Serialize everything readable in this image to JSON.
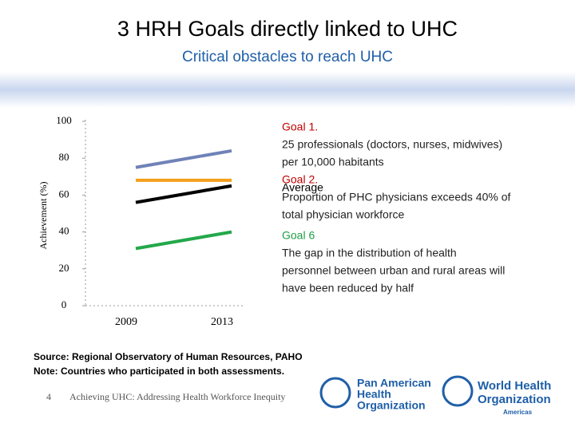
{
  "slide": {
    "title": "3 HRH Goals directly linked to UHC",
    "subtitle": "Critical obstacles to reach UHC",
    "source": "Source: Regional Observatory of Human Resources, PAHO",
    "note": "Note: Countries who participated in both assessments.",
    "page_number": "4",
    "footer": "Achieving UHC: Addressing Health Workforce Inequity",
    "paho_logo": [
      "Pan American",
      "Health",
      "Organization"
    ],
    "who_logo": [
      "World Health",
      "Organization"
    ],
    "who_region": "Americas"
  },
  "chart_data": {
    "type": "line",
    "y_label": "Achievement (%)",
    "categories": [
      "2009",
      "2013"
    ],
    "ylim": [
      0,
      100
    ],
    "yticks": [
      0,
      20,
      40,
      60,
      80,
      100
    ],
    "series": [
      {
        "name": "Goal 1.",
        "color": "#6f82b8",
        "label_color": "#c00000",
        "values": [
          75,
          84
        ],
        "description": [
          "25 professionals (doctors, nurses, midwives)",
          "per 10,000 habitants"
        ]
      },
      {
        "name": "Goal 2.",
        "color": "#f5a01a",
        "label_color": "#c00000",
        "values": [
          68,
          68
        ],
        "description": [
          "Proportion of PHC physicians exceeds 40% of",
          "total physician workforce"
        ]
      },
      {
        "name": "Goal 6",
        "color": "#22a84a",
        "label_color": "#1e9e45",
        "values": [
          31,
          40
        ],
        "description": [
          "The gap in the distribution of health",
          "personnel between urban and rural areas will",
          "have been reduced by half"
        ]
      },
      {
        "name": "Average",
        "color": "#000000",
        "label_color": "#000000",
        "values": [
          56,
          65
        ]
      }
    ]
  }
}
